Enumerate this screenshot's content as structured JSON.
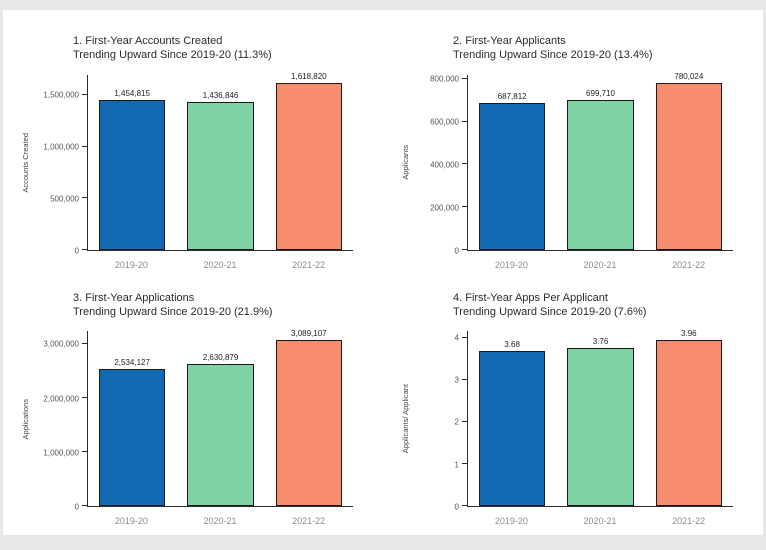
{
  "colors": {
    "background": "#e7e7e7",
    "canvas": "#ffffff",
    "axis": "#2b2b2b",
    "title_text": "#2b2b2b",
    "ytick_text": "#555555",
    "xtick_text": "#8c8c8c",
    "value_text": "#222222",
    "bars": [
      "#1368b4",
      "#7ed3a4",
      "#f78d6d"
    ]
  },
  "chart_data": [
    {
      "type": "bar",
      "title": "1. First-Year Accounts Created",
      "subtitle": "Trending Upward Since 2019-20 (11.3%)",
      "ylabel": "Accounts Created",
      "xlabel": "",
      "categories": [
        "2019-20",
        "2020-21",
        "2021-22"
      ],
      "values": [
        1454815,
        1436846,
        1618820
      ],
      "value_labels": [
        "1,454,815",
        "1,436,846",
        "1,618,820"
      ],
      "yticks": [
        0,
        500000,
        1000000,
        1500000
      ],
      "ytick_labels": [
        "0",
        "500,000",
        "1,000,000",
        "1,500,000"
      ],
      "ylim": [
        0,
        1700000
      ],
      "grid": false,
      "legend": false
    },
    {
      "type": "bar",
      "title": "2. First-Year Applicants",
      "subtitle": "Trending Upward Since 2019-20 (13.4%)",
      "ylabel": "Applicants",
      "xlabel": "",
      "categories": [
        "2019-20",
        "2020-21",
        "2021-22"
      ],
      "values": [
        687812,
        699710,
        780024
      ],
      "value_labels": [
        "687,812",
        "699,710",
        "780,024"
      ],
      "yticks": [
        0,
        200000,
        400000,
        600000,
        800000
      ],
      "ytick_labels": [
        "0",
        "200,000",
        "400,000",
        "600,000",
        "800,000"
      ],
      "ylim": [
        0,
        820000
      ],
      "grid": false,
      "legend": false
    },
    {
      "type": "bar",
      "title": "3. First-Year Applications",
      "subtitle": "Trending Upward Since 2019-20 (21.9%)",
      "ylabel": "Applications",
      "xlabel": "",
      "categories": [
        "2019-20",
        "2020-21",
        "2021-22"
      ],
      "values": [
        2534127,
        2630879,
        3089107
      ],
      "value_labels": [
        "2,534,127",
        "2,630,879",
        "3,089,107"
      ],
      "yticks": [
        0,
        1000000,
        2000000,
        3000000
      ],
      "ytick_labels": [
        "0",
        "1,000,000",
        "2,000,000",
        "3,000,000"
      ],
      "ylim": [
        0,
        3245000
      ],
      "grid": false,
      "legend": false
    },
    {
      "type": "bar",
      "title": "4. First-Year Apps Per Applicant",
      "subtitle": "Trending Upward Since 2019-20 (7.6%)",
      "ylabel": "Applicants/ Applicant",
      "xlabel": "",
      "categories": [
        "2019-20",
        "2020-21",
        "2021-22"
      ],
      "values": [
        3.68,
        3.76,
        3.96
      ],
      "value_labels": [
        "3.68",
        "3.76",
        "3.96"
      ],
      "yticks": [
        0,
        1,
        2,
        3,
        4
      ],
      "ytick_labels": [
        "0",
        "1",
        "2",
        "3",
        "4"
      ],
      "ylim": [
        0,
        4.16
      ],
      "grid": false,
      "legend": false
    }
  ]
}
